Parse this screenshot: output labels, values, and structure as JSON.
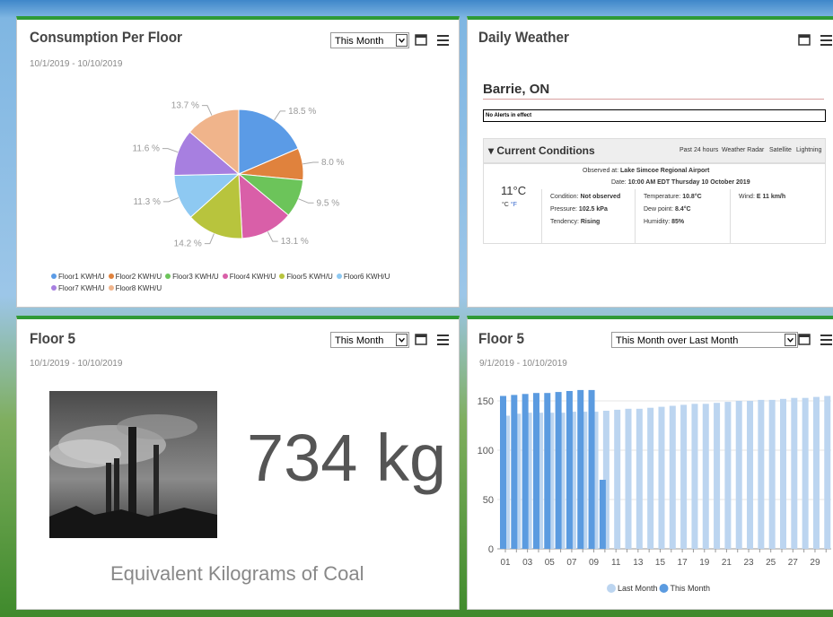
{
  "chart_data": [
    {
      "type": "pie",
      "title": "Consumption Per Floor",
      "subtitle": "10/1/2019 - 10/10/2019",
      "dropdown": "This Month",
      "categories": [
        "Floor1 KWH/U",
        "Floor2 KWH/U",
        "Floor3 KWH/U",
        "Floor4 KWH/U",
        "Floor5 KWH/U",
        "Floor6 KWH/U",
        "Floor7 KWH/U",
        "Floor8 KWH/U"
      ],
      "values": [
        18.5,
        8.0,
        9.5,
        13.1,
        14.2,
        11.3,
        11.6,
        13.7
      ],
      "value_labels": [
        "18.5 %",
        "8.0 %",
        "9.5 %",
        "13.1 %",
        "14.2 %",
        "11.3 %",
        "11.6 %",
        "13.7 %"
      ],
      "colors": [
        "#5b9be6",
        "#e0823d",
        "#6cc45a",
        "#d95fa8",
        "#b8c43d",
        "#8ec9f2",
        "#a77fe0",
        "#f0b48b"
      ]
    },
    {
      "type": "bar",
      "title": "Floor 5",
      "subtitle": "9/1/2019 - 10/10/2019",
      "dropdown": "This Month over Last Month",
      "categories": [
        "01",
        null,
        "03",
        null,
        "05",
        null,
        "07",
        null,
        "09",
        null,
        "11",
        null,
        "13",
        null,
        "15",
        null,
        "17",
        null,
        "19",
        null,
        "21",
        null,
        "23",
        null,
        "25",
        null,
        "27",
        null,
        "29",
        null
      ],
      "series": [
        {
          "name": "Last Month",
          "color": "#bcd5f0",
          "values": [
            135,
            137,
            138,
            138,
            138,
            138,
            139,
            139,
            139,
            140,
            141,
            142,
            142,
            143,
            144,
            145,
            146,
            147,
            147,
            148,
            149,
            150,
            150,
            151,
            151,
            152,
            153,
            153,
            154,
            155
          ]
        },
        {
          "name": "This Month",
          "color": "#5b9be0",
          "values": [
            155,
            156,
            157,
            158,
            158,
            159,
            160,
            161,
            161,
            70,
            null,
            null,
            null,
            null,
            null,
            null,
            null,
            null,
            null,
            null,
            null,
            null,
            null,
            null,
            null,
            null,
            null,
            null,
            null,
            null
          ]
        }
      ],
      "ylim": [
        0,
        170
      ],
      "yticks": [
        0,
        50,
        100,
        150
      ],
      "grid": true
    }
  ],
  "weather": {
    "title": "Daily Weather",
    "city": "Barrie, ON",
    "alerts": "No Alerts in effect",
    "section": "Current Conditions",
    "links": [
      "Past 24 hours",
      "Weather Radar",
      "Satellite",
      "Lightning"
    ],
    "observed_label": "Observed at:",
    "observed": "Lake Simcoe Regional Airport",
    "date_label": "Date:",
    "date": "10:00 AM EDT Thursday 10 October 2019",
    "temperature": "11°C",
    "unit_c": "°C",
    "unit_f": "°F",
    "rows": [
      [
        [
          "Condition:",
          "Not observed"
        ],
        [
          "Temperature:",
          "10.8°C"
        ],
        [
          "Wind:",
          "E 11 km/h"
        ]
      ],
      [
        [
          "Pressure:",
          "102.5 kPa"
        ],
        [
          "Dew point:",
          "8.4°C"
        ]
      ],
      [
        [
          "Tendency:",
          "Rising"
        ],
        [
          "Humidity:",
          "85%"
        ]
      ]
    ]
  },
  "coal": {
    "title": "Floor 5",
    "dropdown": "This Month",
    "subtitle": "10/1/2019 - 10/10/2019",
    "value": "734 kg",
    "caption": "Equivalent Kilograms of Coal"
  }
}
